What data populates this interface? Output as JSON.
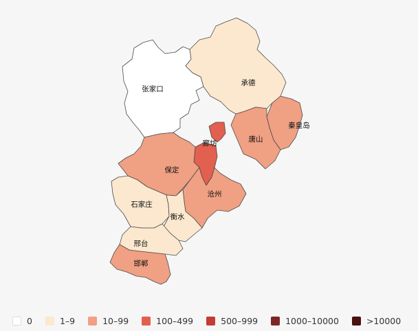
{
  "map": {
    "regions": [
      {
        "id": "zhangjiakou",
        "name": "张家口",
        "level": 0
      },
      {
        "id": "chengde",
        "name": "承德",
        "level": 1
      },
      {
        "id": "qinhuangdao",
        "name": "秦皇岛",
        "level": 2
      },
      {
        "id": "tangshan",
        "name": "唐山",
        "level": 2
      },
      {
        "id": "langfang",
        "name": "廊坊",
        "level": 3
      },
      {
        "id": "baoding",
        "name": "保定",
        "level": 2
      },
      {
        "id": "cangzhou",
        "name": "沧州",
        "level": 2
      },
      {
        "id": "shijiazhuang",
        "name": "石家庄",
        "level": 1
      },
      {
        "id": "hengshui",
        "name": "衡水",
        "level": 1
      },
      {
        "id": "xingtai",
        "name": "邢台",
        "level": 1
      },
      {
        "id": "handan",
        "name": "邯郸",
        "level": 2
      }
    ]
  },
  "legend": {
    "items": [
      {
        "label": "0",
        "color": "#ffffff"
      },
      {
        "label": "1–9",
        "color": "#fbe8cf"
      },
      {
        "label": "10–99",
        "color": "#f0a083"
      },
      {
        "label": "100–499",
        "color": "#e2604f"
      },
      {
        "label": "500–999",
        "color": "#c43c36"
      },
      {
        "label": "1000–10000",
        "color": "#7d2627"
      },
      {
        "label": ">10000",
        "color": "#4a1110"
      }
    ]
  }
}
